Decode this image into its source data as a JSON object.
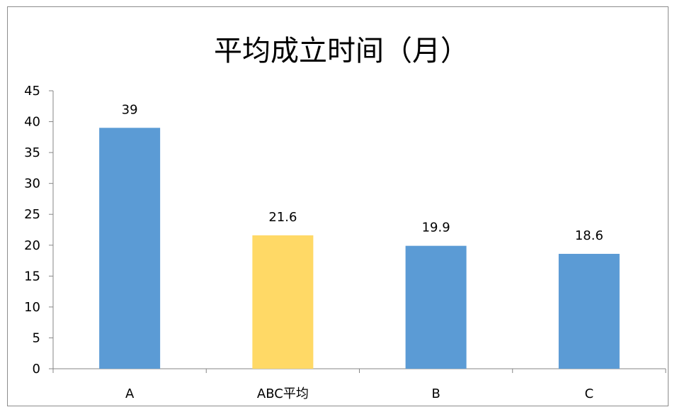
{
  "chart_data": {
    "type": "bar",
    "title": "平均成立时间（月）",
    "categories": [
      "A",
      "ABC平均",
      "B",
      "C"
    ],
    "values": [
      39,
      21.6,
      19.9,
      18.6
    ],
    "bar_colors": [
      "#5B9BD5",
      "#FFD966",
      "#5B9BD5",
      "#5B9BD5"
    ],
    "data_labels": [
      "39",
      "21.6",
      "19.9",
      "18.6"
    ],
    "ylim": [
      0,
      45
    ],
    "yticks": [
      0,
      5,
      10,
      15,
      20,
      25,
      30,
      35,
      40,
      45
    ],
    "xlabel": "",
    "ylabel": "",
    "grid": false,
    "legend": "none"
  }
}
